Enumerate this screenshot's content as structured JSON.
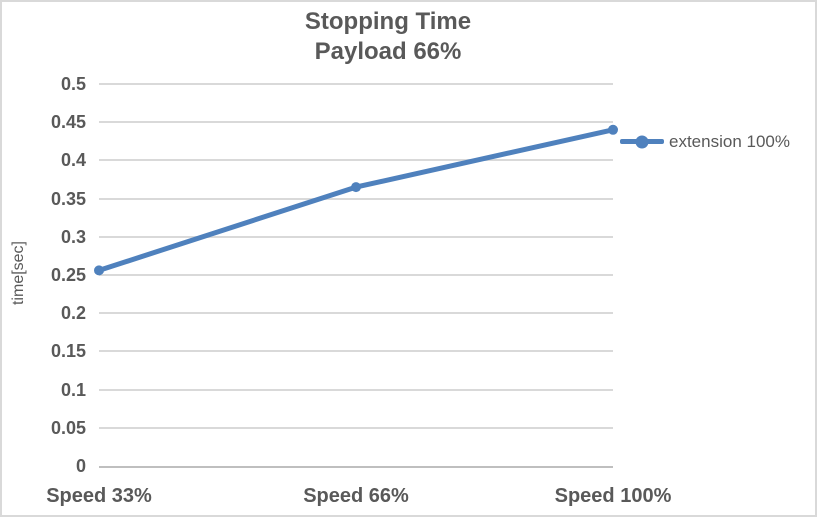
{
  "chart": {
    "title_line1": "Stopping Time",
    "title_line2": "Payload 66%",
    "y_axis_title": "time[sec]",
    "legend_label": "extension 100%"
  },
  "chart_data": {
    "type": "line",
    "title": "Stopping Time Payload 66%",
    "categories": [
      "Speed 33%",
      "Speed 66%",
      "Speed 100%"
    ],
    "series": [
      {
        "name": "extension 100%",
        "values": [
          0.256,
          0.365,
          0.44
        ]
      }
    ],
    "xlabel": "",
    "ylabel": "time[sec]",
    "ylim": [
      0,
      0.5
    ],
    "ytick_step": 0.05,
    "ytick_labels": [
      "0",
      "0.05",
      "0.1",
      "0.15",
      "0.2",
      "0.25",
      "0.3",
      "0.35",
      "0.4",
      "0.45",
      "0.5"
    ],
    "grid": true,
    "legend_position": "right",
    "marker": "circle",
    "colors": {
      "series": "#4F81BD",
      "gridline": "#d9d9d9",
      "axis_line": "#bfbfbf",
      "text": "#595959",
      "chart_border": "#d9d9d9"
    }
  }
}
